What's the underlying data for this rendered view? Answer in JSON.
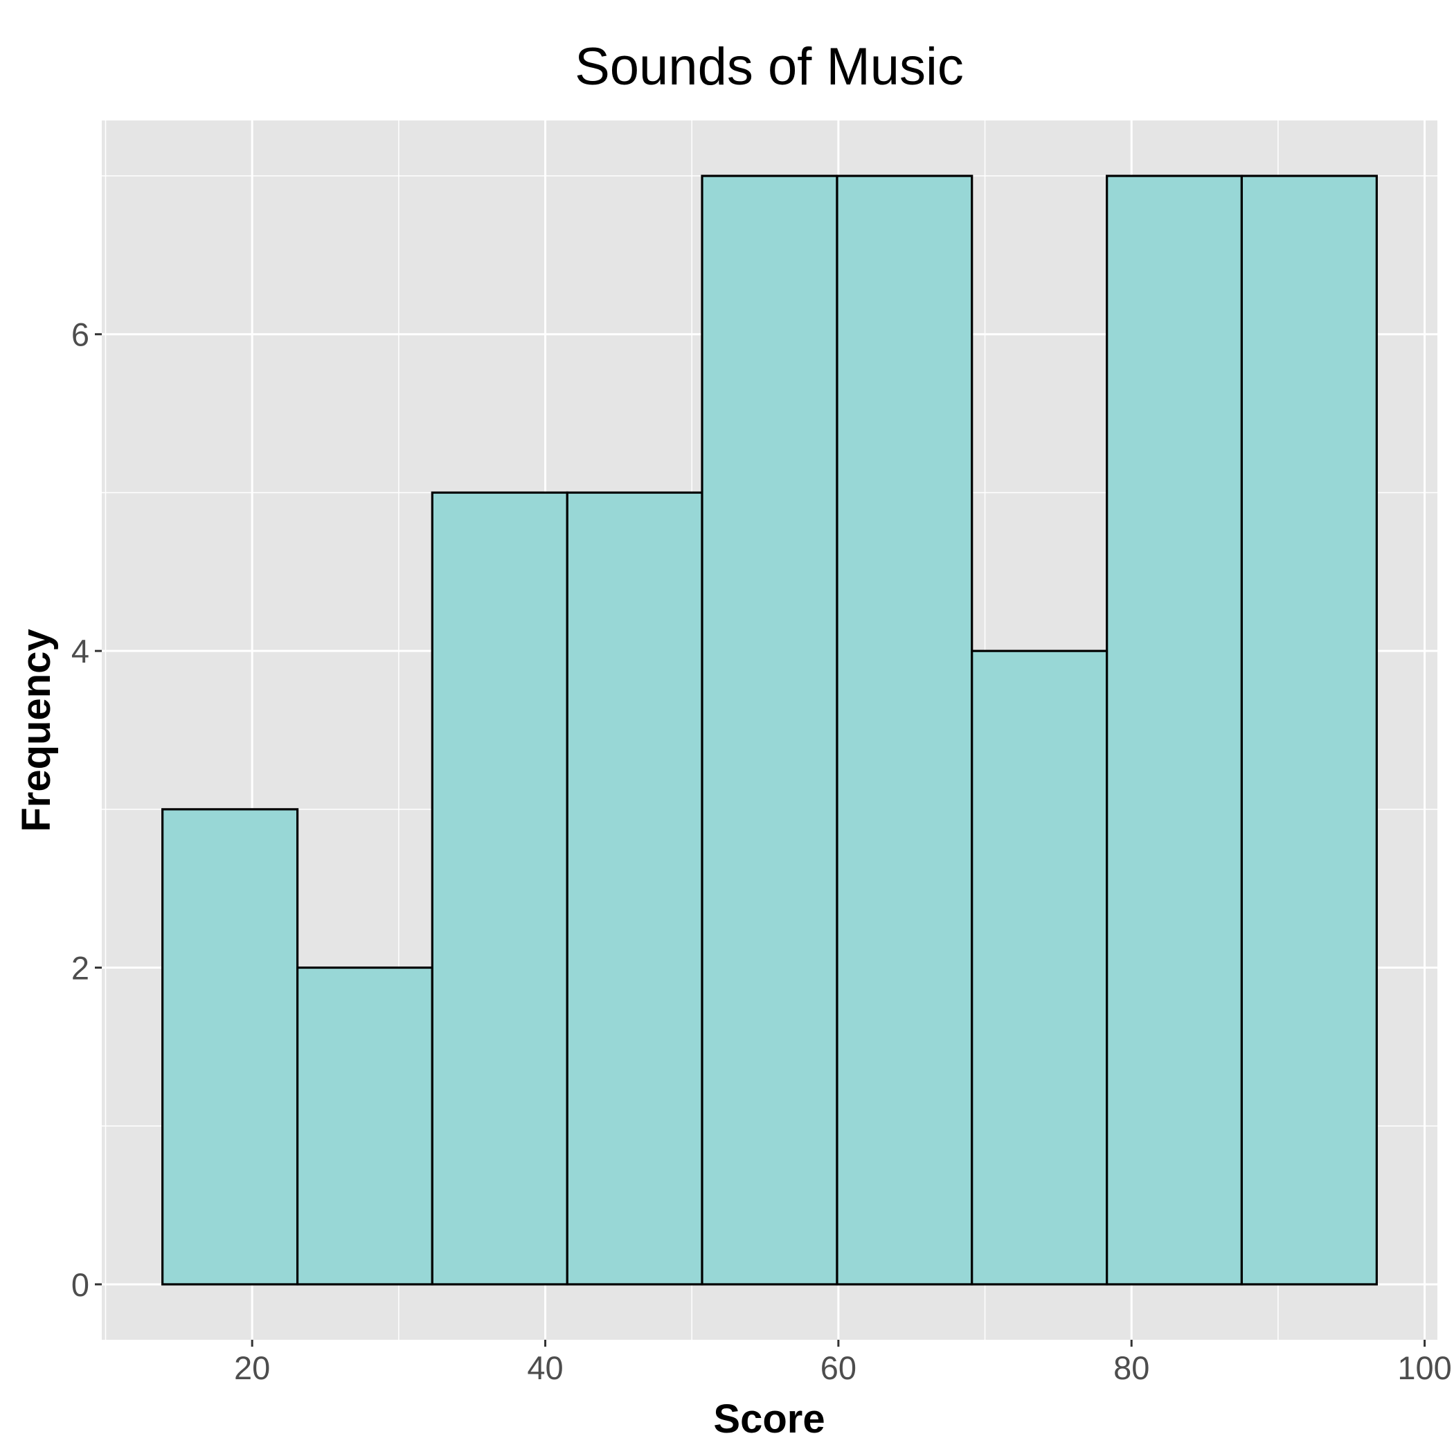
{
  "chart_data": {
    "type": "bar",
    "subtype": "histogram",
    "title": "Sounds of Music",
    "xlabel": "Score",
    "ylabel": "Frequency",
    "bin_edges": [
      13.88,
      23.09,
      32.29,
      41.5,
      50.7,
      59.91,
      69.11,
      78.32,
      87.52,
      96.73
    ],
    "values": [
      3,
      2,
      5,
      5,
      7,
      7,
      4,
      7,
      7
    ],
    "xlim": [
      9.74,
      100.87
    ],
    "ylim": [
      -0.35,
      7.35
    ],
    "xticks": [
      20,
      40,
      60,
      80,
      100
    ],
    "xtick_labels": [
      "20",
      "40",
      "60",
      "80",
      "100"
    ],
    "yticks": [
      0,
      2,
      4,
      6
    ],
    "ytick_labels": [
      "0",
      "2",
      "4",
      "6"
    ],
    "grid": true,
    "colors": {
      "bar_fill": "#98d7d6",
      "bar_edge": "#000000",
      "panel_background": "#e5e5e5"
    }
  }
}
